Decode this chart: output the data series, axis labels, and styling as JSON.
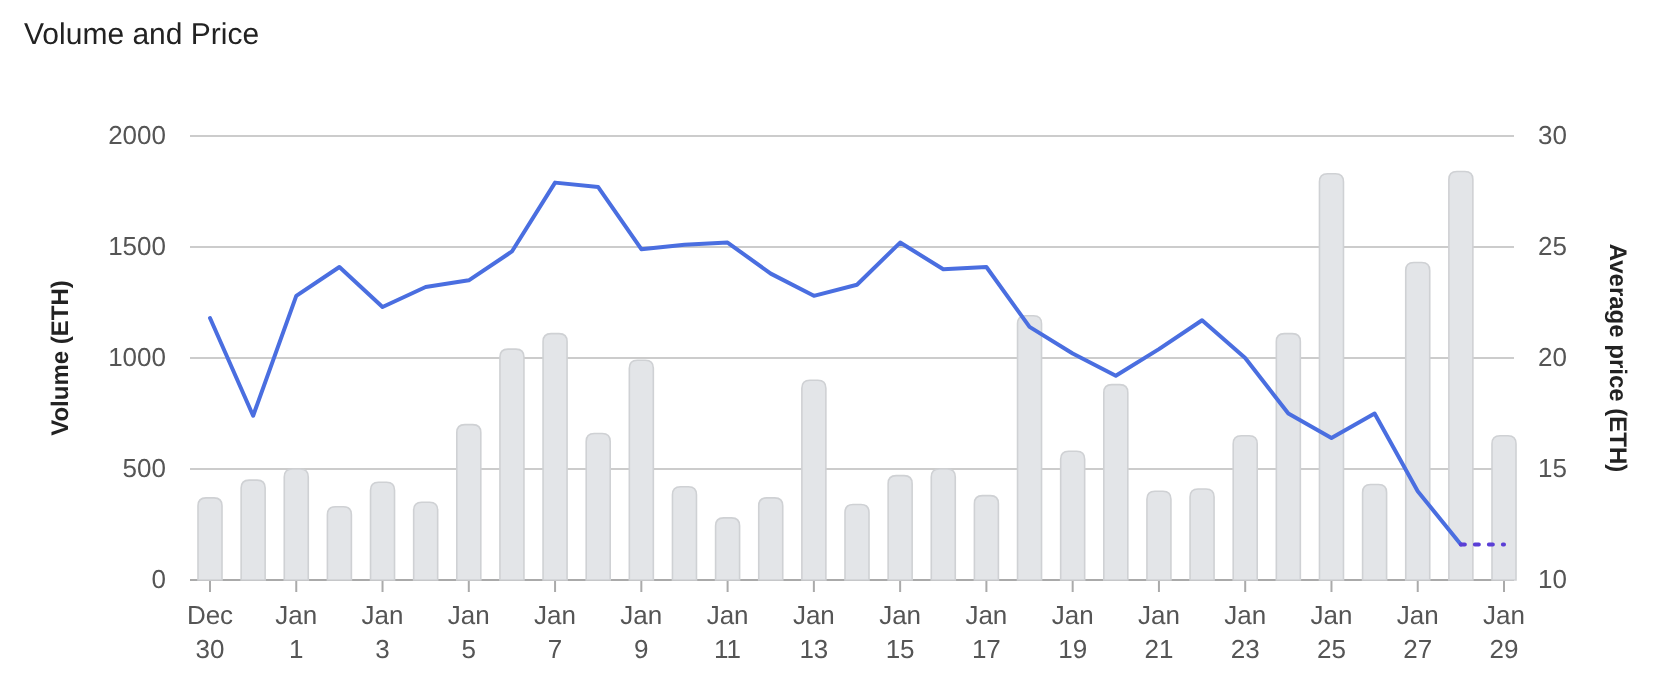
{
  "chart_data": {
    "type": "bar",
    "title": "Volume and Price",
    "ylabel": "Volume (ETH)",
    "y2label": "Average price (ETH)",
    "categories": [
      "Dec 30",
      null,
      "Jan 1",
      null,
      "Jan 3",
      null,
      "Jan 5",
      null,
      "Jan 7",
      null,
      "Jan 9",
      null,
      "Jan 11",
      null,
      "Jan 13",
      null,
      "Jan 15",
      null,
      "Jan 17",
      null,
      "Jan 19",
      null,
      "Jan 21",
      null,
      "Jan 23",
      null,
      "Jan 25",
      null,
      "Jan 27",
      null,
      "Jan 29"
    ],
    "series": [
      {
        "color": "#e3e5e8",
        "values": [
          370,
          450,
          500,
          330,
          440,
          350,
          700,
          1040,
          1110,
          660,
          990,
          420,
          280,
          370,
          900,
          340,
          470,
          500,
          380,
          1190,
          580,
          880,
          400,
          410,
          650,
          1110,
          1830,
          430,
          1430,
          1840,
          650
        ]
      },
      {
        "type": "line",
        "axis": "y2",
        "color": "#4a6ee0",
        "line_style": "solid",
        "values": [
          21.8,
          17.4,
          22.8,
          24.1,
          22.3,
          23.2,
          23.5,
          24.8,
          27.9,
          27.7,
          24.9,
          25.1,
          25.2,
          23.8,
          22.8,
          23.3,
          25.2,
          24.0,
          24.1,
          21.4,
          20.2,
          19.2,
          20.4,
          21.7,
          20.0,
          17.5,
          16.4,
          17.5,
          14.0,
          11.6,
          null
        ]
      },
      {
        "type": "line",
        "axis": "y2",
        "color": "#5b3fd6",
        "line_style": "dotted",
        "values": [
          null,
          null,
          null,
          null,
          null,
          null,
          null,
          null,
          null,
          null,
          null,
          null,
          null,
          null,
          null,
          null,
          null,
          null,
          null,
          null,
          null,
          null,
          null,
          null,
          null,
          null,
          null,
          null,
          null,
          11.6,
          11.6
        ]
      }
    ],
    "ylim": [
      0,
      2000
    ],
    "yticks": [
      0,
      500,
      1000,
      1500,
      2000
    ],
    "y2lim": [
      10,
      30
    ],
    "y2ticks": [
      10,
      15,
      20,
      25,
      30
    ],
    "grid": "y"
  }
}
